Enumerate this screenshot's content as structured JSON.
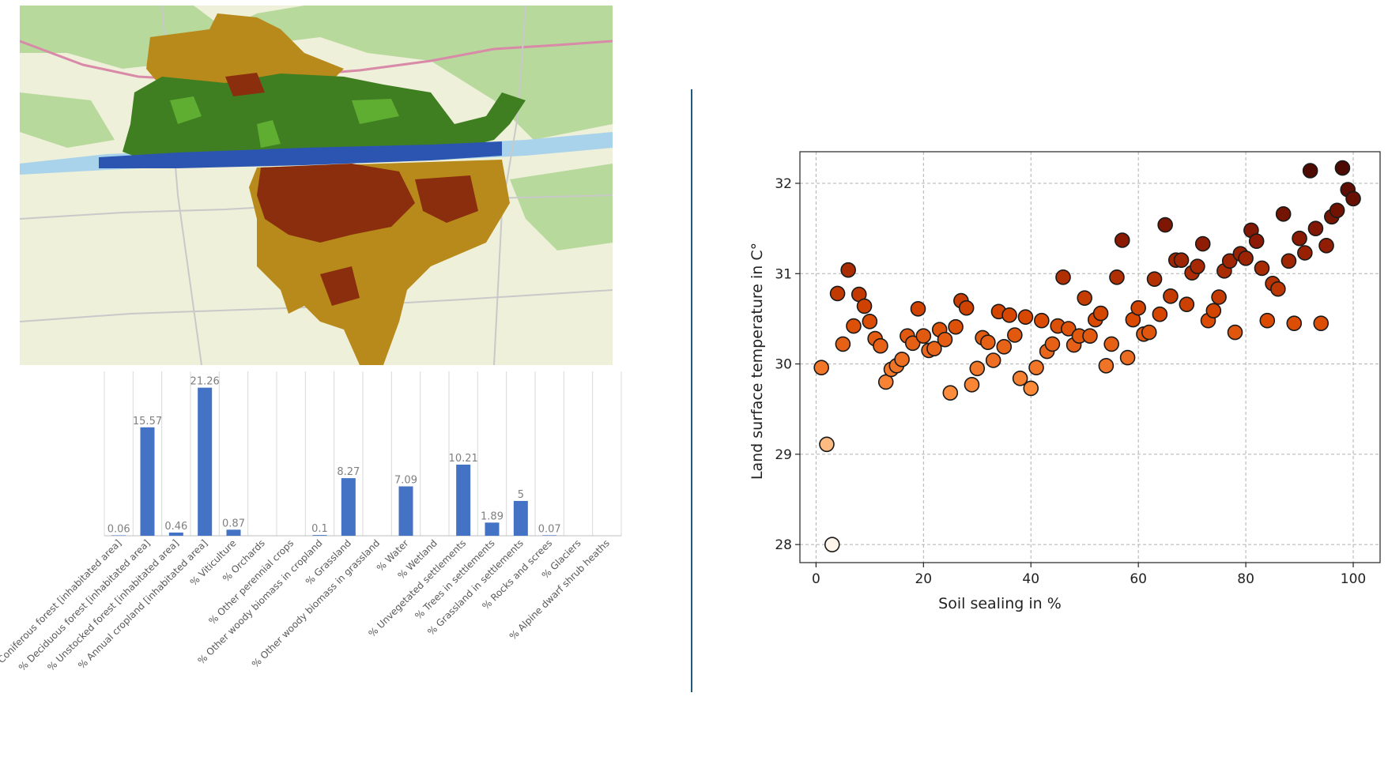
{
  "map": {
    "colors": {
      "base": "#eef0d9",
      "fields": "#f3eed9",
      "woods": "#b7d99b",
      "river": "#a8d3ea",
      "water": "#2b55b0",
      "forest": "#3f7f22",
      "forest_light": "#5fae32",
      "cropland": "#b88a1c",
      "settlement": "#8a2e0d",
      "road": "#c9c9c9",
      "highway": "#d88aa8"
    }
  },
  "bar_chart": {
    "type": "bar",
    "bar_color": "#4472c4",
    "label_color": "#7f7f7f",
    "categories": [
      "% Coniferous forest [inhabitated area]",
      "% Deciduous forest [inhabitated area]",
      "% Unstocked forest [inhabitated area]",
      "% Annual cropland [inhabitated area]",
      "% Viticulture",
      "% Orchards",
      "% Other perennial crops",
      "% Other woody biomass in cropland",
      "% Grassland",
      "% Other woody biomass in grassland",
      "% Water",
      "% Wetland",
      "% Unvegetated settlements",
      "% Trees in settlements",
      "% Grassland in settlements",
      "% Rocks and screes",
      "% Glaciers",
      "% Alpine dwarf shrub heaths"
    ],
    "values": [
      0.06,
      15.57,
      0.46,
      21.26,
      0.87,
      null,
      null,
      0.1,
      8.27,
      null,
      7.09,
      null,
      10.21,
      1.89,
      5,
      0.07,
      null,
      null
    ],
    "labels": [
      "0.06",
      "15.57",
      "0.46",
      "21.26",
      "0.87",
      "",
      "",
      "0.1",
      "8.27",
      "",
      "7.09",
      "",
      "10.21",
      "1.89",
      "5",
      "0.07",
      "",
      ""
    ],
    "ylim": [
      0,
      23.6
    ]
  },
  "chart_data": {
    "type": "scatter",
    "xlabel": "Soil sealing in %",
    "ylabel": "Land surface temperature in C°",
    "xlim": [
      -3,
      105
    ],
    "ylim": [
      27.8,
      32.35
    ],
    "xticks": [
      "0",
      "20",
      "40",
      "60",
      "80",
      "100"
    ],
    "yticks": [
      "28",
      "29",
      "30",
      "31",
      "32"
    ],
    "grid": true,
    "colormap": [
      "#fff5eb",
      "#fdd0a2",
      "#fd8d3c",
      "#d94801",
      "#8c1a04",
      "#4a0902"
    ],
    "points": [
      [
        1,
        29.96
      ],
      [
        2,
        29.11
      ],
      [
        3,
        28.0
      ],
      [
        4,
        30.78
      ],
      [
        5,
        30.22
      ],
      [
        6,
        31.04
      ],
      [
        7,
        30.42
      ],
      [
        8,
        30.77
      ],
      [
        9,
        30.64
      ],
      [
        10,
        30.47
      ],
      [
        11,
        30.28
      ],
      [
        12,
        30.2
      ],
      [
        13,
        29.8
      ],
      [
        14,
        29.94
      ],
      [
        15,
        29.98
      ],
      [
        16,
        30.05
      ],
      [
        17,
        30.31
      ],
      [
        18,
        30.23
      ],
      [
        19,
        30.61
      ],
      [
        20,
        30.31
      ],
      [
        21,
        30.15
      ],
      [
        22,
        30.17
      ],
      [
        23,
        30.38
      ],
      [
        24,
        30.27
      ],
      [
        25,
        29.68
      ],
      [
        26,
        30.41
      ],
      [
        27,
        30.7
      ],
      [
        28,
        30.62
      ],
      [
        29,
        29.77
      ],
      [
        30,
        29.95
      ],
      [
        31,
        30.29
      ],
      [
        32,
        30.24
      ],
      [
        33,
        30.04
      ],
      [
        34,
        30.58
      ],
      [
        35,
        30.19
      ],
      [
        36,
        30.54
      ],
      [
        37,
        30.32
      ],
      [
        38,
        29.84
      ],
      [
        39,
        30.52
      ],
      [
        40,
        29.73
      ],
      [
        41,
        29.96
      ],
      [
        42,
        30.48
      ],
      [
        43,
        30.14
      ],
      [
        44,
        30.22
      ],
      [
        45,
        30.42
      ],
      [
        46,
        30.96
      ],
      [
        47,
        30.39
      ],
      [
        48,
        30.21
      ],
      [
        49,
        30.31
      ],
      [
        50,
        30.73
      ],
      [
        51,
        30.31
      ],
      [
        52,
        30.49
      ],
      [
        53,
        30.56
      ],
      [
        54,
        29.98
      ],
      [
        55,
        30.22
      ],
      [
        56,
        30.96
      ],
      [
        57,
        31.37
      ],
      [
        58,
        30.07
      ],
      [
        59,
        30.49
      ],
      [
        60,
        30.62
      ],
      [
        61,
        30.33
      ],
      [
        62,
        30.35
      ],
      [
        63,
        30.94
      ],
      [
        64,
        30.55
      ],
      [
        65,
        31.54
      ],
      [
        66,
        30.75
      ],
      [
        67,
        31.15
      ],
      [
        68,
        31.15
      ],
      [
        69,
        30.66
      ],
      [
        70,
        31.01
      ],
      [
        71,
        31.08
      ],
      [
        72,
        31.33
      ],
      [
        73,
        30.48
      ],
      [
        74,
        30.59
      ],
      [
        75,
        30.74
      ],
      [
        76,
        31.03
      ],
      [
        77,
        31.14
      ],
      [
        78,
        30.35
      ],
      [
        79,
        31.22
      ],
      [
        80,
        31.17
      ],
      [
        81,
        31.48
      ],
      [
        82,
        31.36
      ],
      [
        83,
        31.06
      ],
      [
        84,
        30.48
      ],
      [
        85,
        30.89
      ],
      [
        86,
        30.83
      ],
      [
        87,
        31.66
      ],
      [
        88,
        31.14
      ],
      [
        89,
        30.45
      ],
      [
        90,
        31.39
      ],
      [
        91,
        31.23
      ],
      [
        92,
        32.14
      ],
      [
        93,
        31.5
      ],
      [
        94,
        30.45
      ],
      [
        95,
        31.31
      ],
      [
        96,
        31.63
      ],
      [
        97,
        31.7
      ],
      [
        98,
        32.17
      ],
      [
        99,
        31.93
      ],
      [
        100,
        31.83
      ]
    ]
  }
}
